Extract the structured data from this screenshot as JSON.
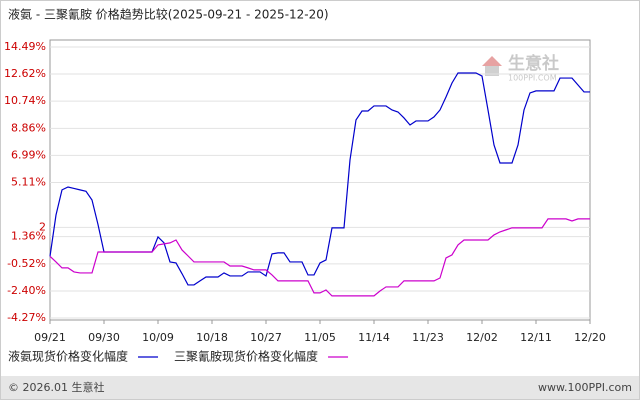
{
  "chart_data": {
    "type": "line",
    "title": "液氨 - 三聚氰胺 价格趋势比较(2025-09-21 - 2025-12-20)",
    "categories": [
      "09/21",
      null,
      null,
      null,
      null,
      null,
      null,
      null,
      null,
      "09/30",
      null,
      null,
      null,
      null,
      null,
      null,
      null,
      null,
      "10/09",
      null,
      null,
      null,
      null,
      null,
      null,
      null,
      null,
      "10/18",
      null,
      null,
      null,
      null,
      null,
      null,
      null,
      null,
      "10/27",
      null,
      null,
      null,
      null,
      null,
      null,
      null,
      null,
      "11/05",
      null,
      null,
      null,
      null,
      null,
      null,
      null,
      null,
      "11/14",
      null,
      null,
      null,
      null,
      null,
      null,
      null,
      null,
      "11/23",
      null,
      null,
      null,
      null,
      null,
      null,
      null,
      null,
      "12/02",
      null,
      null,
      null,
      null,
      null,
      null,
      null,
      null,
      "12/11",
      null,
      null,
      null,
      null,
      null,
      null,
      null,
      null,
      "12/20"
    ],
    "series": [
      {
        "name": "液氨现货价格变化幅度",
        "color": "#0000cc",
        "values": [
          0,
          2.86,
          4.6,
          4.8,
          4.7,
          4.6,
          4.5,
          3.9,
          2.2,
          0.3,
          0.3,
          0.3,
          0.3,
          0.3,
          0.3,
          0.3,
          0.3,
          0.3,
          1.34,
          0.93,
          -0.39,
          -0.46,
          -1.2,
          -1.98,
          -1.98,
          -1.7,
          -1.43,
          -1.43,
          -1.43,
          -1.15,
          -1.36,
          -1.36,
          -1.36,
          -1.08,
          -1.08,
          -1.08,
          -1.36,
          0.17,
          0.24,
          0.24,
          -0.39,
          -0.39,
          -0.39,
          -1.29,
          -1.29,
          -0.46,
          -0.25,
          1.97,
          1.97,
          1.97,
          6.67,
          9.44,
          10.06,
          10.06,
          10.41,
          10.41,
          10.41,
          10.13,
          9.99,
          9.58,
          9.09,
          9.37,
          9.37,
          9.37,
          9.65,
          10.13,
          11.03,
          12.0,
          12.69,
          12.69,
          12.69,
          12.69,
          12.48,
          10.13,
          7.71,
          6.46,
          6.46,
          6.46,
          7.71,
          10.13,
          11.31,
          11.45,
          11.45,
          11.45,
          11.45,
          12.34,
          12.34,
          12.34,
          11.86,
          11.38,
          11.38
        ]
      },
      {
        "name": "三聚氰胺现货价格变化幅度",
        "color": "#cc00cc",
        "values": [
          0,
          -0.39,
          -0.8,
          -0.8,
          -1.08,
          -1.15,
          -1.15,
          -1.15,
          0.3,
          0.3,
          0.3,
          0.3,
          0.3,
          0.3,
          0.3,
          0.3,
          0.3,
          0.3,
          0.79,
          0.86,
          0.93,
          1.13,
          0.44,
          0.03,
          -0.39,
          -0.39,
          -0.39,
          -0.39,
          -0.39,
          -0.39,
          -0.67,
          -0.67,
          -0.67,
          -0.8,
          -0.94,
          -0.94,
          -0.94,
          -1.29,
          -1.7,
          -1.7,
          -1.7,
          -1.7,
          -1.7,
          -1.7,
          -2.53,
          -2.53,
          -2.33,
          -2.74,
          -2.74,
          -2.74,
          -2.74,
          -2.74,
          -2.74,
          -2.74,
          -2.74,
          -2.4,
          -2.12,
          -2.12,
          -2.12,
          -1.7,
          -1.7,
          -1.7,
          -1.7,
          -1.7,
          -1.7,
          -1.5,
          -0.11,
          0.1,
          0.79,
          1.13,
          1.13,
          1.13,
          1.13,
          1.13,
          1.48,
          1.69,
          1.83,
          1.97,
          1.97,
          1.97,
          1.97,
          1.97,
          1.97,
          2.59,
          2.59,
          2.59,
          2.59,
          2.45,
          2.59,
          2.59,
          2.59
        ]
      }
    ],
    "ylim": [
      -4.27,
      14.49
    ],
    "yticks": [
      {
        "value": 14.49,
        "label": "14.49%"
      },
      {
        "value": 12.62,
        "label": "12.62%"
      },
      {
        "value": 10.74,
        "label": "10.74%"
      },
      {
        "value": 8.86,
        "label": "8.86%"
      },
      {
        "value": 6.99,
        "label": "6.99%"
      },
      {
        "value": 5.11,
        "label": "5.11%"
      },
      2,
      {
        "value": 1.36,
        "label": "1.36%"
      },
      {
        "value": -0.52,
        "label": "-0.52%"
      },
      {
        "value": -2.4,
        "label": "-2.40%"
      },
      {
        "value": -4.27,
        "label": "-4.27%"
      }
    ],
    "grid": true
  },
  "watermark": {
    "name": "生意社",
    "url": "100PPI.COM"
  },
  "footer": {
    "copyright": "© 2026.01 生意社",
    "site": "www.100PPI.com"
  }
}
